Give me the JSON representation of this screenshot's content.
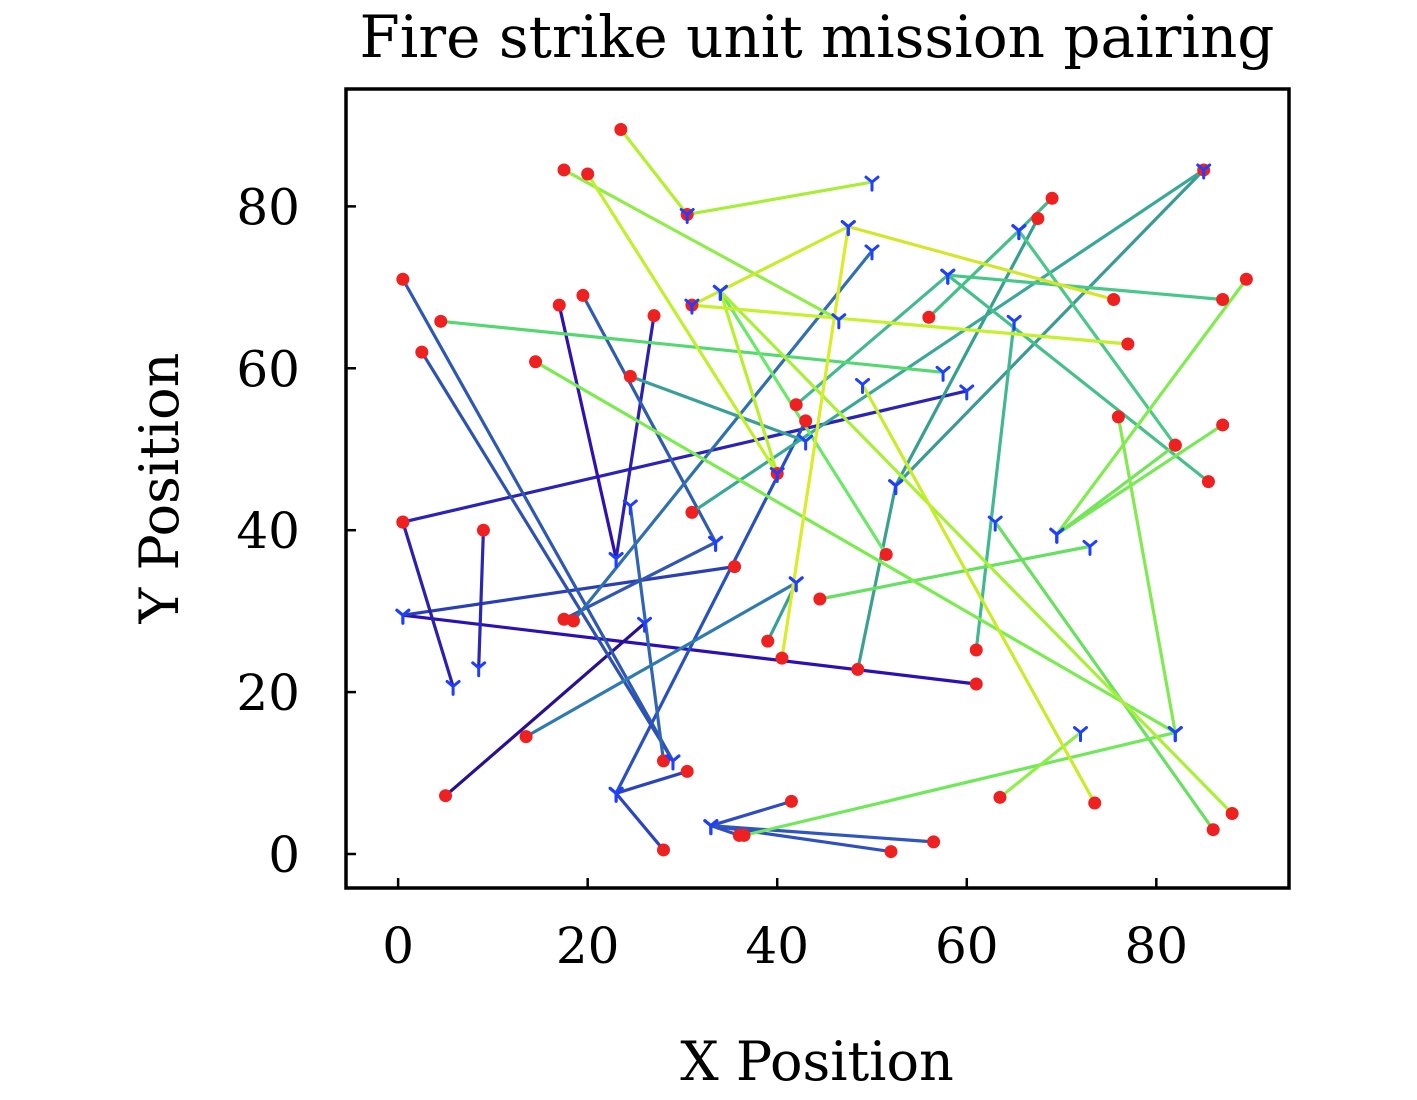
{
  "chart_data": {
    "type": "scatter",
    "title": "Fire strike unit mission pairing",
    "xlabel": "X Position",
    "ylabel": "Y Position",
    "xlim": [
      -5.5,
      94
    ],
    "ylim": [
      -4.2,
      94.5
    ],
    "xticks": [
      0,
      20,
      40,
      60,
      80
    ],
    "yticks": [
      0,
      20,
      40,
      60,
      80
    ],
    "grid": false,
    "legend": "none",
    "colors": {
      "unit_marker": "#1f3fff",
      "target_marker": "#ee2020",
      "frame": "#000000"
    },
    "pairings": [
      {
        "unit": [
          0.5,
          29.5
        ],
        "target": [
          61.0,
          21.0
        ],
        "color": "#2a10b5"
      },
      {
        "unit": [
          0.5,
          29.5
        ],
        "target": [
          35.5,
          35.5
        ],
        "color": "#2a3fb4"
      },
      {
        "unit": [
          5.8,
          20.7
        ],
        "target": [
          0.5,
          41.0
        ],
        "color": "#2a1fb0"
      },
      {
        "unit": [
          8.5,
          23.0
        ],
        "target": [
          9.0,
          40.0
        ],
        "color": "#2b27b3"
      },
      {
        "unit": [
          60.0,
          57.2
        ],
        "target": [
          0.5,
          41.0
        ],
        "color": "#2b22b8"
      },
      {
        "unit": [
          23.0,
          36.5
        ],
        "target": [
          17.0,
          67.8
        ],
        "color": "#3010b0"
      },
      {
        "unit": [
          23.0,
          36.5
        ],
        "target": [
          27.0,
          66.5
        ],
        "color": "#2c1fb0"
      },
      {
        "unit": [
          26.0,
          28.5
        ],
        "target": [
          5.0,
          7.2
        ],
        "color": "#2a1090"
      },
      {
        "unit": [
          33.5,
          38.5
        ],
        "target": [
          19.5,
          69.0
        ],
        "color": "#2f5cb0"
      },
      {
        "unit": [
          29.0,
          11.5
        ],
        "target": [
          0.5,
          71.0
        ],
        "color": "#2d58b4"
      },
      {
        "unit": [
          29.0,
          11.5
        ],
        "target": [
          2.5,
          62.0
        ],
        "color": "#2d52b2"
      },
      {
        "unit": [
          23.0,
          7.5
        ],
        "target": [
          28.0,
          0.5
        ],
        "color": "#2a45c0"
      },
      {
        "unit": [
          23.0,
          7.5
        ],
        "target": [
          43.0,
          53.5
        ],
        "color": "#2850c0"
      },
      {
        "unit": [
          23.0,
          7.5
        ],
        "target": [
          30.5,
          10.2
        ],
        "color": "#2a44bb"
      },
      {
        "unit": [
          24.5,
          43.0
        ],
        "target": [
          28.0,
          11.5
        ],
        "color": "#3064b4"
      },
      {
        "unit": [
          33.5,
          38.5
        ],
        "target": [
          17.5,
          29.0
        ],
        "color": "#3257b0"
      },
      {
        "unit": [
          33.0,
          3.5
        ],
        "target": [
          41.5,
          6.5
        ],
        "color": "#2f4cc0"
      },
      {
        "unit": [
          33.0,
          3.5
        ],
        "target": [
          52.0,
          0.3
        ],
        "color": "#2f50c0"
      },
      {
        "unit": [
          33.0,
          3.5
        ],
        "target": [
          56.5,
          1.5
        ],
        "color": "#2f55c0"
      },
      {
        "unit": [
          33.0,
          3.5
        ],
        "target": [
          36.0,
          2.3
        ],
        "color": "#3050c0"
      },
      {
        "unit": [
          42.0,
          33.5
        ],
        "target": [
          13.5,
          14.5
        ],
        "color": "#2f7ab0"
      },
      {
        "unit": [
          42.0,
          33.5
        ],
        "target": [
          39.0,
          26.3
        ],
        "color": "#38a09a"
      },
      {
        "unit": [
          50.0,
          74.5
        ],
        "target": [
          18.5,
          28.8
        ],
        "color": "#3070b0"
      },
      {
        "unit": [
          43.0,
          51.0
        ],
        "target": [
          24.5,
          59.0
        ],
        "color": "#3a9f9a"
      },
      {
        "unit": [
          52.5,
          45.5
        ],
        "target": [
          48.5,
          22.8
        ],
        "color": "#3aa090"
      },
      {
        "unit": [
          52.5,
          45.5
        ],
        "target": [
          85.0,
          84.5
        ],
        "color": "#3a9a98"
      },
      {
        "unit": [
          52.5,
          45.5
        ],
        "target": [
          67.5,
          78.5
        ],
        "color": "#35a090"
      },
      {
        "unit": [
          85.0,
          84.5
        ],
        "target": [
          31.0,
          42.2
        ],
        "color": "#3aa898"
      },
      {
        "unit": [
          58.0,
          71.5
        ],
        "target": [
          42.0,
          55.5
        ],
        "color": "#44b890"
      },
      {
        "unit": [
          58.0,
          71.5
        ],
        "target": [
          87.0,
          68.5
        ],
        "color": "#48c888"
      },
      {
        "unit": [
          58.0,
          71.5
        ],
        "target": [
          85.5,
          46.0
        ],
        "color": "#46c08a"
      },
      {
        "unit": [
          65.5,
          77.0
        ],
        "target": [
          56.0,
          66.3
        ],
        "color": "#44c088"
      },
      {
        "unit": [
          65.5,
          77.0
        ],
        "target": [
          69.0,
          81.0
        ],
        "color": "#42b88c"
      },
      {
        "unit": [
          65.5,
          77.0
        ],
        "target": [
          82.0,
          50.5
        ],
        "color": "#4bc888"
      },
      {
        "unit": [
          65.0,
          65.8
        ],
        "target": [
          61.0,
          25.2
        ],
        "color": "#40b890"
      },
      {
        "unit": [
          57.5,
          59.5
        ],
        "target": [
          4.5,
          65.8
        ],
        "color": "#55d870"
      },
      {
        "unit": [
          63.0,
          41.0
        ],
        "target": [
          86.0,
          3.0
        ],
        "color": "#6ae060"
      },
      {
        "unit": [
          69.5,
          39.5
        ],
        "target": [
          87.0,
          53.0
        ],
        "color": "#78e858"
      },
      {
        "unit": [
          69.5,
          39.5
        ],
        "target": [
          89.5,
          71.0
        ],
        "color": "#80ec50"
      },
      {
        "unit": [
          69.5,
          39.5
        ],
        "target": [
          82.0,
          50.5
        ],
        "color": "#74e45a"
      },
      {
        "unit": [
          73.0,
          38.0
        ],
        "target": [
          44.5,
          31.5
        ],
        "color": "#66e060"
      },
      {
        "unit": [
          82.0,
          15.0
        ],
        "target": [
          14.5,
          60.8
        ],
        "color": "#7aec50"
      },
      {
        "unit": [
          82.0,
          15.0
        ],
        "target": [
          36.5,
          2.3
        ],
        "color": "#70e85a"
      },
      {
        "unit": [
          82.0,
          15.0
        ],
        "target": [
          76.0,
          54.0
        ],
        "color": "#80ea50"
      },
      {
        "unit": [
          72.0,
          15.0
        ],
        "target": [
          63.5,
          7.0
        ],
        "color": "#90ee48"
      },
      {
        "unit": [
          34.0,
          69.5
        ],
        "target": [
          51.5,
          37.0
        ],
        "color": "#6ae868"
      },
      {
        "unit": [
          34.0,
          69.5
        ],
        "target": [
          40.0,
          47.0
        ],
        "color": "#b8f030"
      },
      {
        "unit": [
          34.0,
          69.5
        ],
        "target": [
          88.0,
          5.0
        ],
        "color": "#a8f038"
      },
      {
        "unit": [
          46.5,
          66.0
        ],
        "target": [
          17.5,
          84.5
        ],
        "color": "#90ec48"
      },
      {
        "unit": [
          47.5,
          77.5
        ],
        "target": [
          40.5,
          24.2
        ],
        "color": "#d8ec28"
      },
      {
        "unit": [
          47.5,
          77.5
        ],
        "target": [
          75.5,
          68.5
        ],
        "color": "#d4e62c"
      },
      {
        "unit": [
          47.5,
          77.5
        ],
        "target": [
          31.0,
          67.8
        ],
        "color": "#c8ec2c"
      },
      {
        "unit": [
          50.0,
          83.0
        ],
        "target": [
          30.5,
          79.0
        ],
        "color": "#a8ee38"
      },
      {
        "unit": [
          30.5,
          79.0
        ],
        "target": [
          23.5,
          89.5
        ],
        "color": "#b4f030"
      },
      {
        "unit": [
          40.0,
          47.0
        ],
        "target": [
          20.0,
          84.0
        ],
        "color": "#c0f02c"
      },
      {
        "unit": [
          31.0,
          67.8
        ],
        "target": [
          77.0,
          63.0
        ],
        "color": "#c4f02c"
      },
      {
        "unit": [
          49.0,
          58.0
        ],
        "target": [
          73.5,
          6.3
        ],
        "color": "#c8ec28"
      }
    ]
  }
}
